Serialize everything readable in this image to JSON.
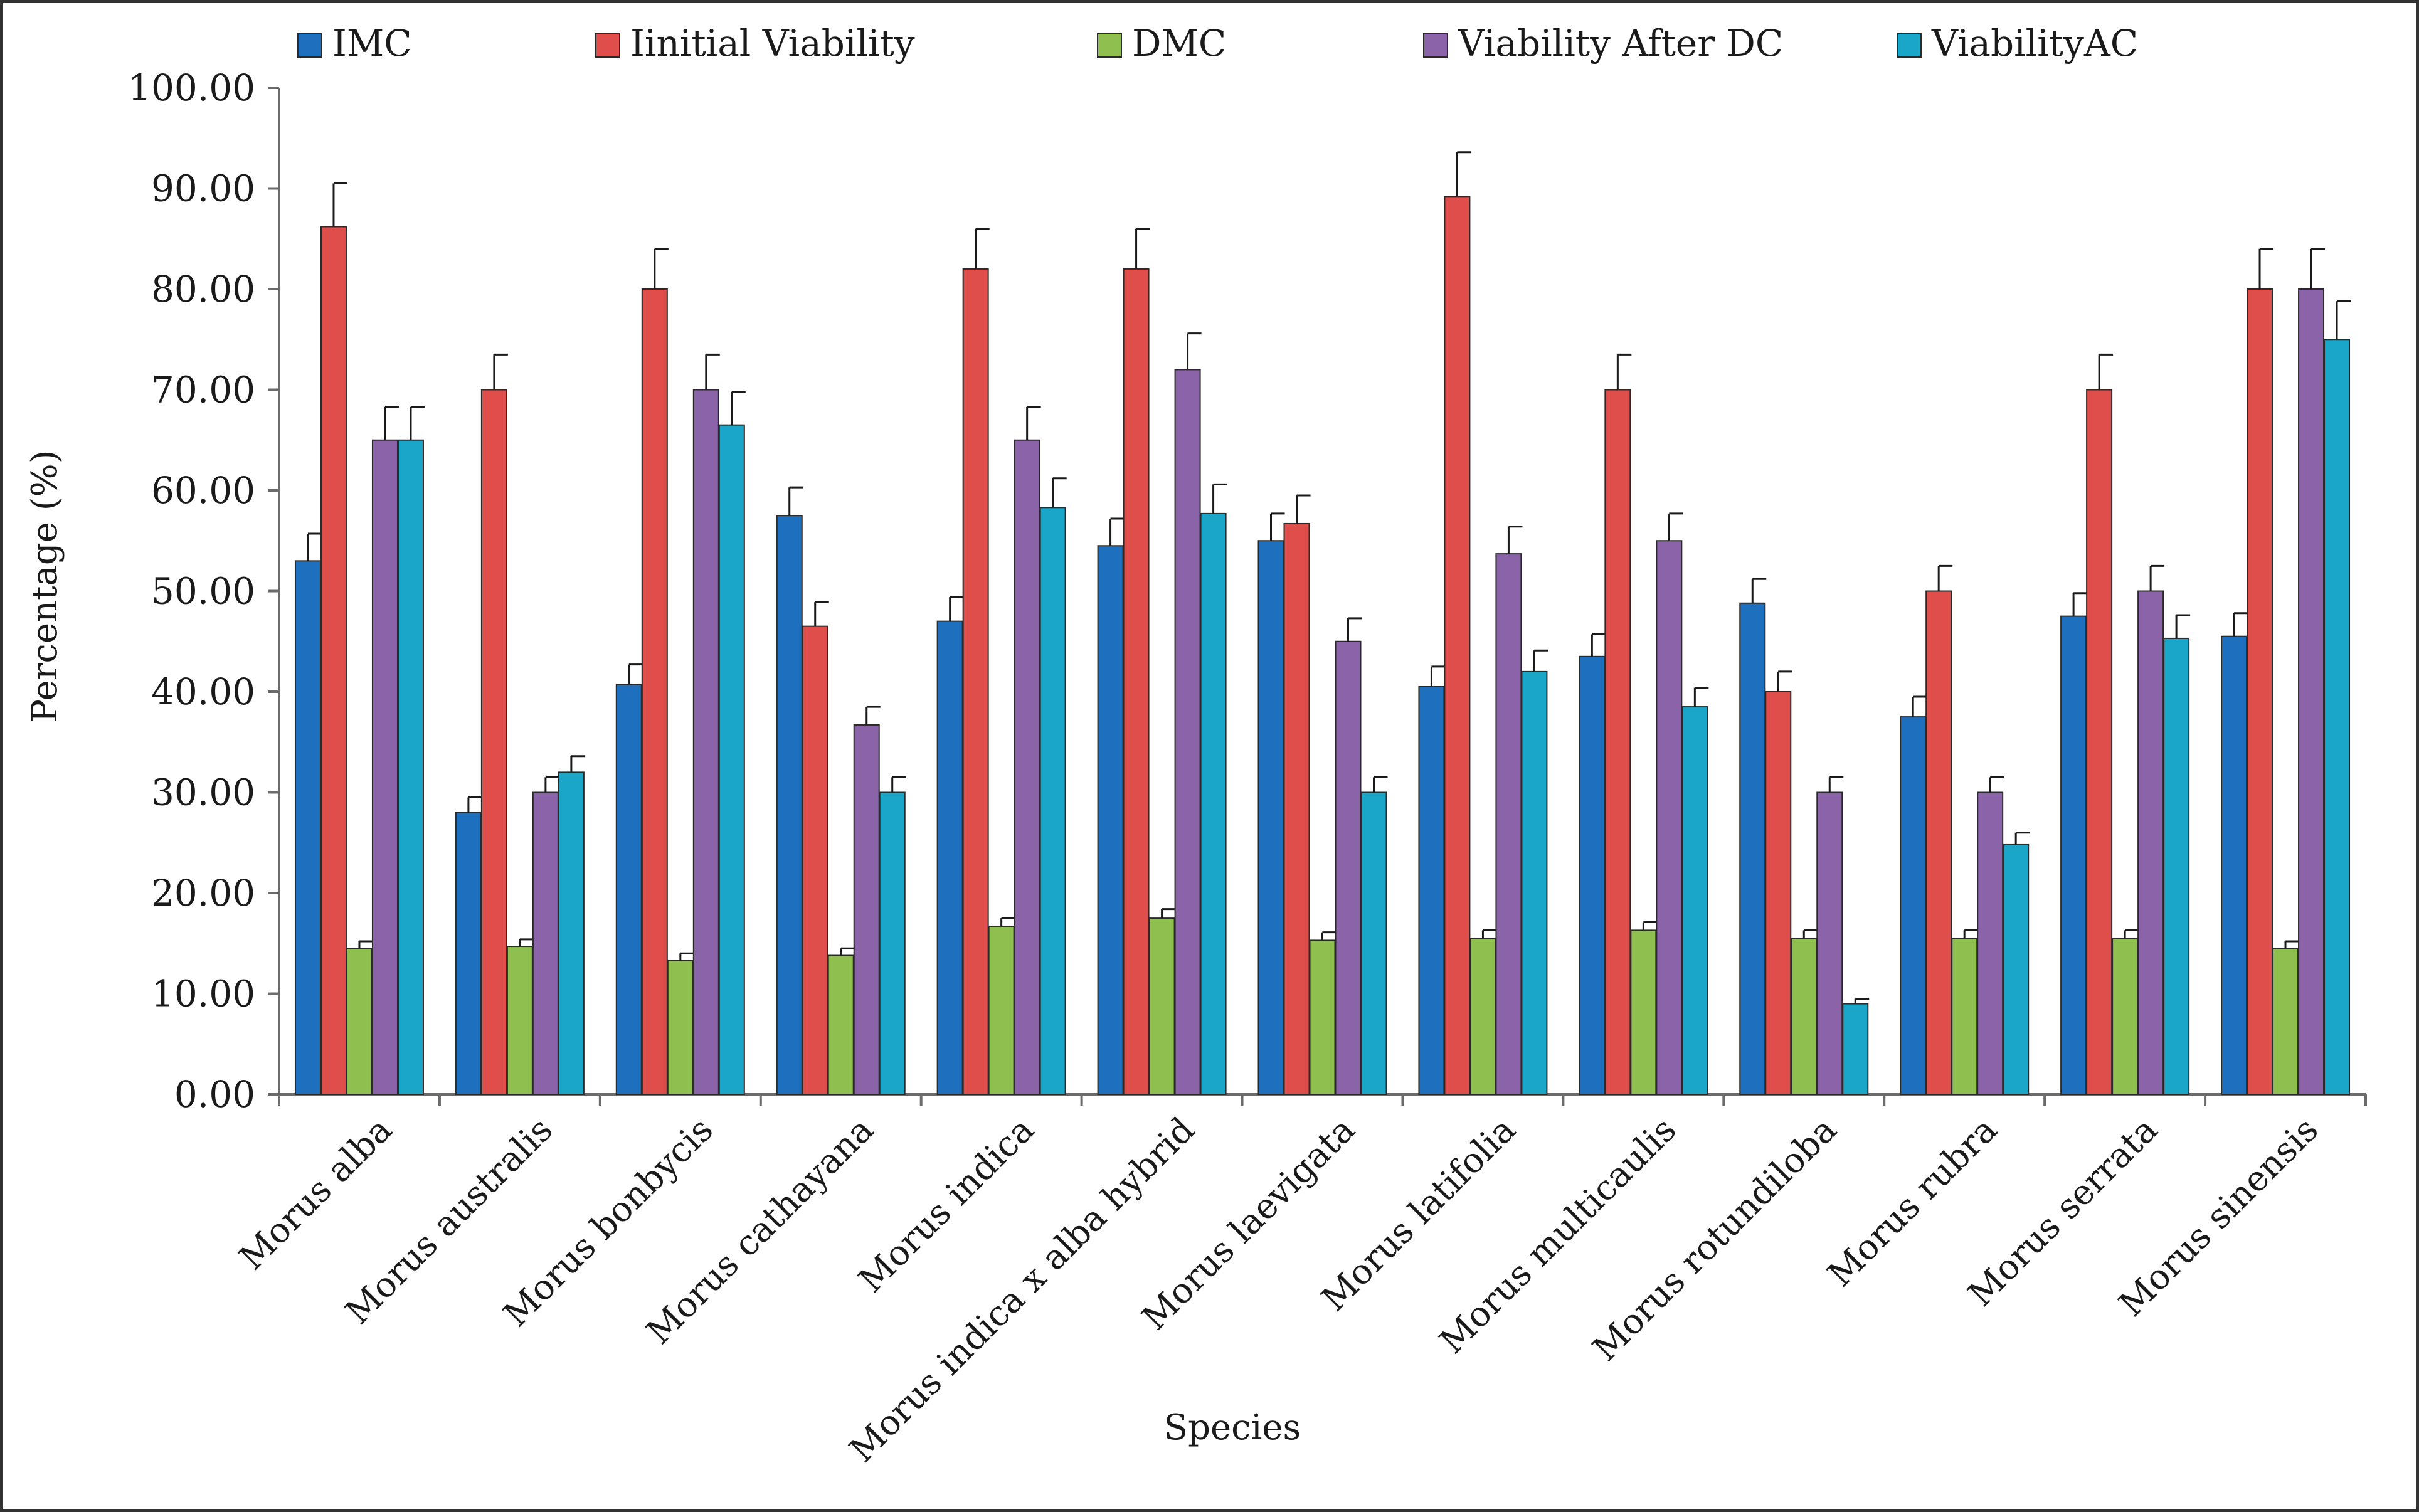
{
  "chart_data": {
    "type": "bar",
    "title": "",
    "xlabel": "Species",
    "ylabel": "Percentage  (%)",
    "ylim": [
      0,
      100
    ],
    "yticks": [
      "0.00",
      "10.00",
      "20.00",
      "30.00",
      "40.00",
      "50.00",
      "60.00",
      "70.00",
      "80.00",
      "90.00",
      "100.00"
    ],
    "legend_position": "top",
    "grid": false,
    "categories": [
      "Morus alba",
      "Morus australis",
      "Morus bonbycis",
      "Morus cathayana",
      "Morus indica",
      "Morus indica x alba hybrid",
      "Morus laevigata",
      "Morus latifolia",
      "Morus multicaulis",
      "Morus rotundiloba",
      "Morus rubra",
      "Morus serrata",
      "Morus sinensis"
    ],
    "series": [
      {
        "name": "IMC",
        "color": "#1f6fbf",
        "values": [
          53.0,
          28.0,
          40.7,
          57.5,
          47.0,
          54.5,
          55.0,
          40.5,
          43.5,
          48.8,
          37.5,
          47.5,
          45.5
        ],
        "errors": [
          2.7,
          1.5,
          2.0,
          2.8,
          2.4,
          2.7,
          2.7,
          2.0,
          2.2,
          2.4,
          2.0,
          2.3,
          2.3
        ]
      },
      {
        "name": "Iinitial Viability",
        "color": "#e04e4b",
        "values": [
          86.2,
          70.0,
          80.0,
          46.5,
          82.0,
          82.0,
          56.7,
          89.2,
          70.0,
          40.0,
          50.0,
          70.0,
          80.0
        ],
        "errors": [
          4.3,
          3.5,
          4.0,
          2.4,
          4.0,
          4.0,
          2.8,
          4.4,
          3.5,
          2.0,
          2.5,
          3.5,
          4.0
        ]
      },
      {
        "name": "DMC",
        "color": "#8fbf4f",
        "values": [
          14.5,
          14.7,
          13.3,
          13.8,
          16.7,
          17.5,
          15.3,
          15.5,
          16.3,
          15.5,
          15.5,
          15.5,
          14.5
        ],
        "errors": [
          0.7,
          0.7,
          0.7,
          0.7,
          0.8,
          0.9,
          0.8,
          0.8,
          0.8,
          0.8,
          0.8,
          0.8,
          0.7
        ]
      },
      {
        "name": "Viability After DC",
        "color": "#8a63a8",
        "values": [
          65.0,
          30.0,
          70.0,
          36.7,
          65.0,
          72.0,
          45.0,
          53.7,
          55.0,
          30.0,
          30.0,
          50.0,
          80.0
        ],
        "errors": [
          3.3,
          1.5,
          3.5,
          1.8,
          3.3,
          3.6,
          2.3,
          2.7,
          2.7,
          1.5,
          1.5,
          2.5,
          4.0
        ]
      },
      {
        "name": "ViabilityAC",
        "color": "#1aa6c8",
        "values": [
          65.0,
          32.0,
          66.5,
          30.0,
          58.3,
          57.7,
          30.0,
          42.0,
          38.5,
          9.0,
          24.8,
          45.3,
          75.0
        ],
        "errors": [
          3.3,
          1.6,
          3.3,
          1.5,
          2.9,
          2.9,
          1.5,
          2.1,
          1.9,
          0.5,
          1.2,
          2.3,
          3.8
        ]
      }
    ]
  }
}
